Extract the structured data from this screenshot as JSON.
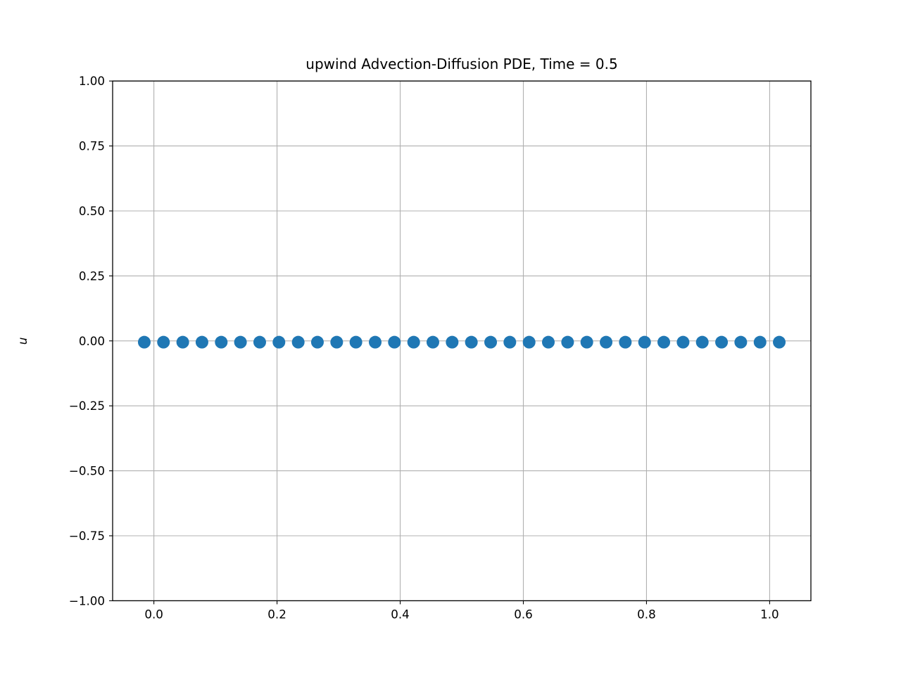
{
  "chart_data": {
    "type": "scatter",
    "title": "upwind Advection-Diffusion PDE, Time = 0.5",
    "xlabel": "",
    "ylabel": "u",
    "xlim": [
      -0.067,
      1.067
    ],
    "ylim": [
      -1.0,
      1.0
    ],
    "grid": true,
    "x_ticks": [
      {
        "value": 0.0,
        "label": "0.0"
      },
      {
        "value": 0.2,
        "label": "0.2"
      },
      {
        "value": 0.4,
        "label": "0.4"
      },
      {
        "value": 0.6,
        "label": "0.6"
      },
      {
        "value": 0.8,
        "label": "0.8"
      },
      {
        "value": 1.0,
        "label": "1.0"
      }
    ],
    "y_ticks": [
      {
        "value": 1.0,
        "label": "1.00"
      },
      {
        "value": 0.75,
        "label": "0.75"
      },
      {
        "value": 0.5,
        "label": "0.50"
      },
      {
        "value": 0.25,
        "label": "0.25"
      },
      {
        "value": 0.0,
        "label": "0.00"
      },
      {
        "value": -0.25,
        "label": "−0.25"
      },
      {
        "value": -0.5,
        "label": "−0.50"
      },
      {
        "value": -0.75,
        "label": "−0.75"
      },
      {
        "value": -1.0,
        "label": "−1.00"
      }
    ],
    "series": [
      {
        "color": "#1f77b4",
        "marker": "circle",
        "x": [
          -0.0156,
          0.0156,
          0.0469,
          0.0781,
          0.1094,
          0.1406,
          0.1719,
          0.2031,
          0.2344,
          0.2656,
          0.2969,
          0.3281,
          0.3594,
          0.3906,
          0.4219,
          0.4531,
          0.4844,
          0.5156,
          0.5469,
          0.5781,
          0.6094,
          0.6406,
          0.6719,
          0.7031,
          0.7344,
          0.7656,
          0.7969,
          0.8281,
          0.8594,
          0.8906,
          0.9219,
          0.9531,
          0.9844,
          1.0156
        ],
        "y": [
          -0.005,
          -0.005,
          -0.005,
          -0.005,
          -0.005,
          -0.005,
          -0.005,
          -0.005,
          -0.005,
          -0.005,
          -0.005,
          -0.005,
          -0.005,
          -0.005,
          -0.005,
          -0.005,
          -0.005,
          -0.005,
          -0.005,
          -0.005,
          -0.005,
          -0.005,
          -0.005,
          -0.005,
          -0.005,
          -0.005,
          -0.005,
          -0.005,
          -0.005,
          -0.005,
          -0.005,
          -0.005,
          -0.005,
          -0.005
        ]
      }
    ]
  }
}
